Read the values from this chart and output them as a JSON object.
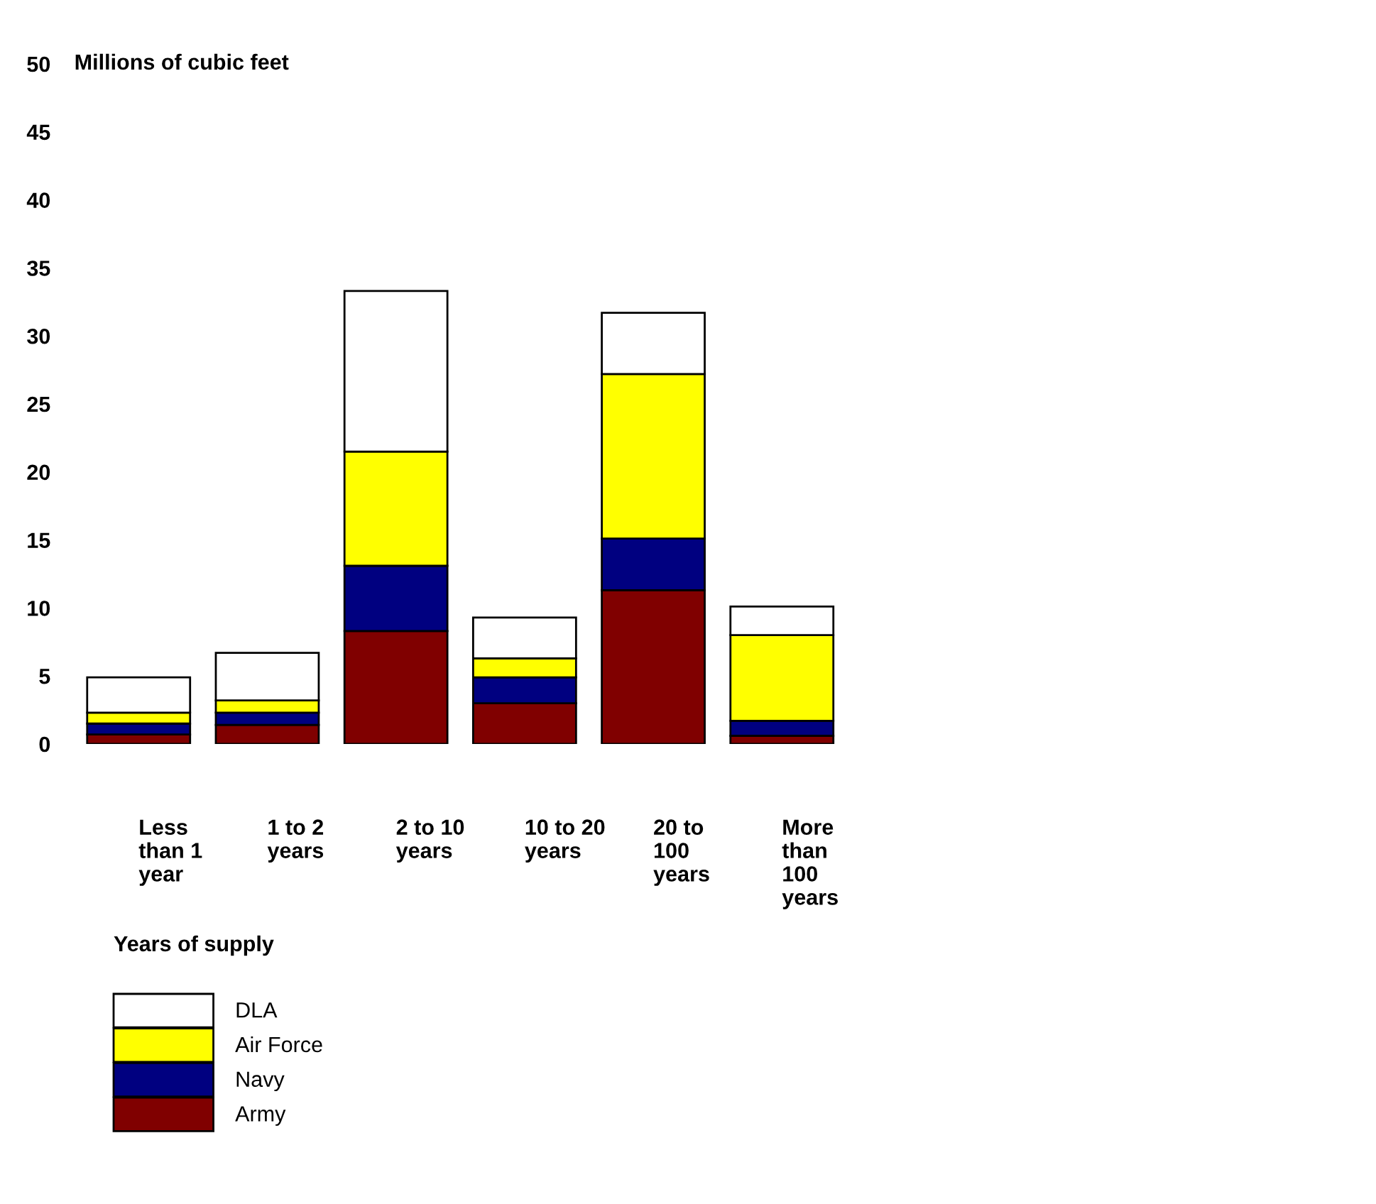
{
  "chart_data": {
    "type": "bar",
    "stacked": true,
    "ylabel": "Millions of cubic feet",
    "xlabel": "Years of supply",
    "categories": [
      "Less\nthan 1\nyear",
      "1 to 2\nyears",
      "2 to 10\nyears",
      "10 to 20\nyears",
      "20 to\n100\nyears",
      "More\nthan\n100\nyears"
    ],
    "series": [
      {
        "name": "Army",
        "color": "#800000",
        "values": [
          0.7,
          1.4,
          8.3,
          3.0,
          11.3,
          0.6
        ]
      },
      {
        "name": "Navy",
        "color": "#000080",
        "values": [
          0.8,
          0.9,
          4.8,
          1.9,
          3.8,
          1.1
        ]
      },
      {
        "name": "Air Force",
        "color": "#ffff00",
        "values": [
          0.8,
          0.9,
          8.4,
          1.4,
          12.1,
          6.3
        ]
      },
      {
        "name": "DLA",
        "color": "#ffffff",
        "values": [
          2.6,
          3.5,
          11.8,
          3.0,
          4.5,
          2.1
        ]
      }
    ],
    "ylim": [
      0,
      50
    ],
    "yticks": [
      0,
      5,
      10,
      15,
      20,
      25,
      30,
      35,
      40,
      45,
      50
    ],
    "grid": false,
    "legend": "bottom"
  }
}
